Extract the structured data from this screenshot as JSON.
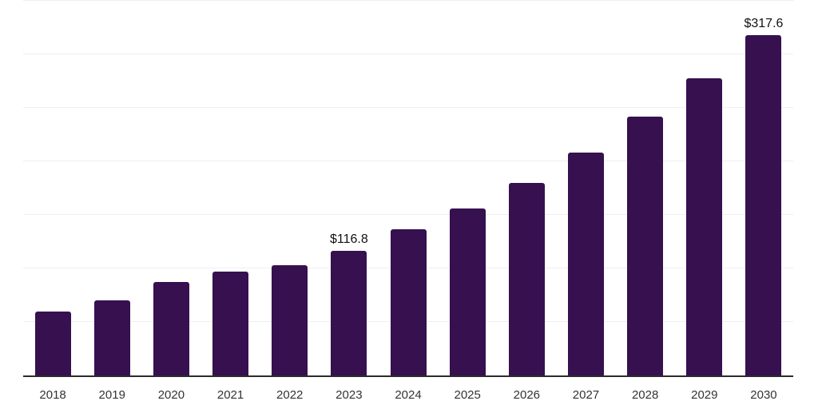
{
  "chart_data": {
    "type": "bar",
    "title": "",
    "xlabel": "",
    "ylabel": "",
    "categories": [
      "2018",
      "2019",
      "2020",
      "2021",
      "2022",
      "2023",
      "2024",
      "2025",
      "2026",
      "2027",
      "2028",
      "2029",
      "2030"
    ],
    "values": [
      60,
      70.5,
      87,
      97,
      103,
      116.8,
      136.5,
      156,
      180,
      208.5,
      241.5,
      277.5,
      317.6
    ],
    "data_labels": [
      {
        "category": "2023",
        "text": "$116.8"
      },
      {
        "category": "2030",
        "text": "$317.6"
      }
    ],
    "ylim": [
      0,
      350
    ],
    "ytick_step": 50,
    "grid": "horizontal",
    "y_tick_labels_visible": false,
    "legend": "none",
    "colors": {
      "bar": "#36104F",
      "axis_line": "#2B2B2B",
      "gridline": "#EFEFEF",
      "tick_label": "#333333",
      "data_label": "#111111",
      "background": "#FFFFFF"
    }
  }
}
